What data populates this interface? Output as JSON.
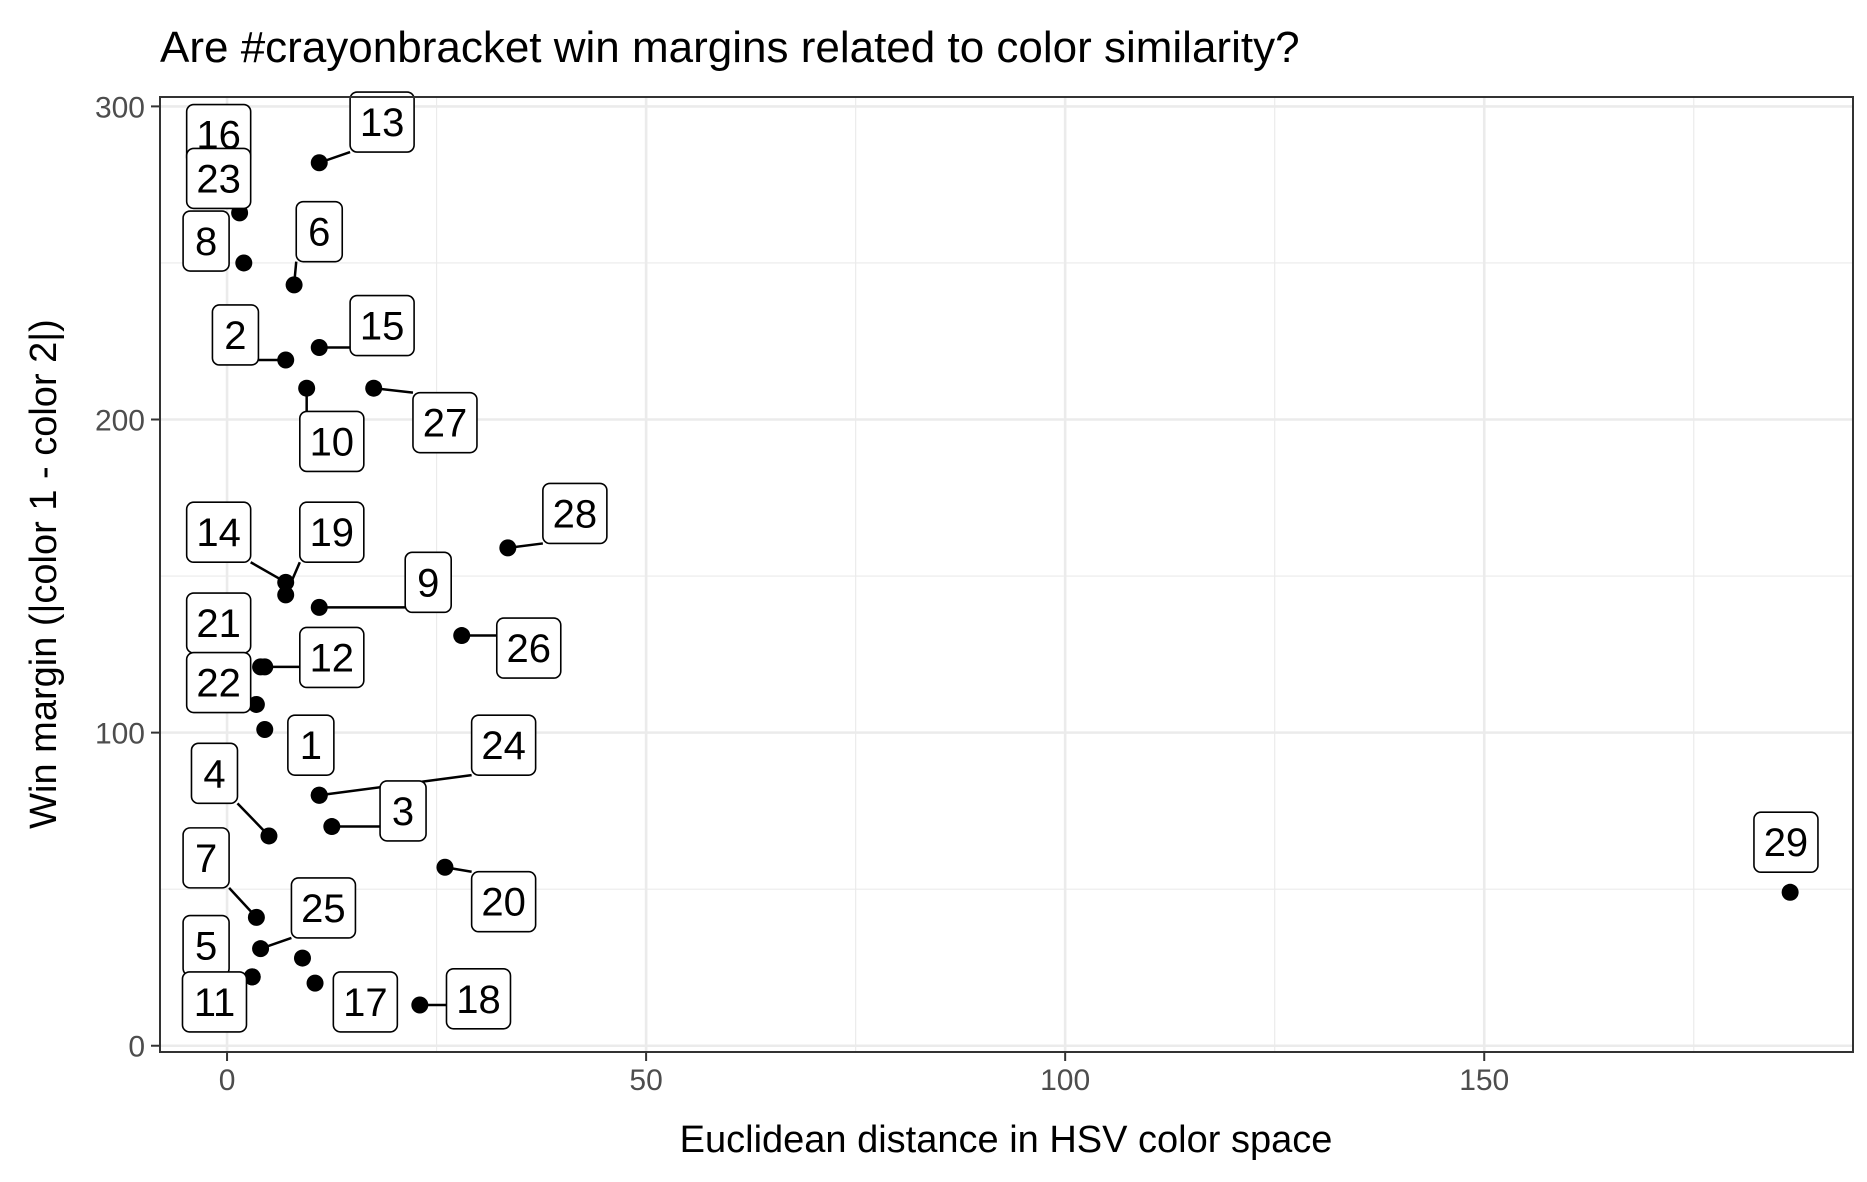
{
  "chart_data": {
    "type": "scatter",
    "title": "Are #crayonbracket win margins related to color similarity?",
    "xlabel": "Euclidean distance in HSV color space",
    "ylabel": "Win margin (|color 1 - color 2|)",
    "xlim": [
      -8,
      194
    ],
    "ylim": [
      -2,
      303
    ],
    "xticks": [
      0,
      50,
      100,
      150
    ],
    "yticks": [
      0,
      100,
      200,
      300
    ],
    "x_minor_gridlines": [
      25,
      75,
      125,
      175
    ],
    "y_minor_gridlines": [
      50,
      150,
      250
    ],
    "grid": true,
    "theme": "bw",
    "point_color": "#000000",
    "points": [
      {
        "label": "1",
        "x": 11,
        "y": 80,
        "lx": 10,
        "ly": 96
      },
      {
        "label": "2",
        "x": 7,
        "y": 219,
        "lx": 1,
        "ly": 227
      },
      {
        "label": "3",
        "x": 12.5,
        "y": 70,
        "lx": 21,
        "ly": 75
      },
      {
        "label": "4",
        "x": 5,
        "y": 67,
        "lx": -1.5,
        "ly": 87
      },
      {
        "label": "5",
        "x": 3,
        "y": 22,
        "lx": -2.5,
        "ly": 32
      },
      {
        "label": "6",
        "x": 8,
        "y": 243,
        "lx": 11,
        "ly": 260
      },
      {
        "label": "7",
        "x": 3.5,
        "y": 41,
        "lx": -2.5,
        "ly": 60
      },
      {
        "label": "8",
        "x": 2,
        "y": 250,
        "lx": -2.5,
        "ly": 257
      },
      {
        "label": "9",
        "x": 11,
        "y": 140,
        "lx": 24,
        "ly": 148
      },
      {
        "label": "10",
        "x": 9.5,
        "y": 210,
        "lx": 12.5,
        "ly": 193
      },
      {
        "label": "11",
        "x": 3,
        "y": 22,
        "lx": -1.5,
        "ly": 14
      },
      {
        "label": "12",
        "x": 4.5,
        "y": 121,
        "lx": 12.5,
        "ly": 124
      },
      {
        "label": "13",
        "x": 11,
        "y": 282,
        "lx": 18.5,
        "ly": 295
      },
      {
        "label": "14",
        "x": 7,
        "y": 148,
        "lx": -1,
        "ly": 164
      },
      {
        "label": "15",
        "x": 11,
        "y": 223,
        "lx": 18.5,
        "ly": 230
      },
      {
        "label": "16",
        "x": 1.5,
        "y": 273,
        "lx": -1,
        "ly": 291
      },
      {
        "label": "17",
        "x": 10.5,
        "y": 20,
        "lx": 16.5,
        "ly": 14
      },
      {
        "label": "18",
        "x": 23,
        "y": 13,
        "lx": 30,
        "ly": 15
      },
      {
        "label": "19",
        "x": 7,
        "y": 144,
        "lx": 12.5,
        "ly": 164
      },
      {
        "label": "20",
        "x": 26,
        "y": 57,
        "lx": 33,
        "ly": 46
      },
      {
        "label": "21",
        "x": 4,
        "y": 121,
        "lx": -1,
        "ly": 135
      },
      {
        "label": "22",
        "x": 3.5,
        "y": 109,
        "lx": -1,
        "ly": 116
      },
      {
        "label": "23",
        "x": 1.5,
        "y": 266,
        "lx": -1,
        "ly": 277
      },
      {
        "label": "24",
        "x": 11,
        "y": 80,
        "lx": 33,
        "ly": 96
      },
      {
        "label": "25",
        "x": 4,
        "y": 31,
        "lx": 11.5,
        "ly": 44
      },
      {
        "label": "26",
        "x": 28,
        "y": 131,
        "lx": 36,
        "ly": 127
      },
      {
        "label": "27",
        "x": 17.5,
        "y": 210,
        "lx": 26,
        "ly": 199
      },
      {
        "label": "28",
        "x": 33.5,
        "y": 159,
        "lx": 41.5,
        "ly": 170
      },
      {
        "label": "29",
        "x": 186.5,
        "y": 49,
        "lx": 186,
        "ly": 65
      },
      {
        "label": "",
        "x": 9,
        "y": 28
      },
      {
        "label": "",
        "x": 4.5,
        "y": 101
      }
    ]
  }
}
